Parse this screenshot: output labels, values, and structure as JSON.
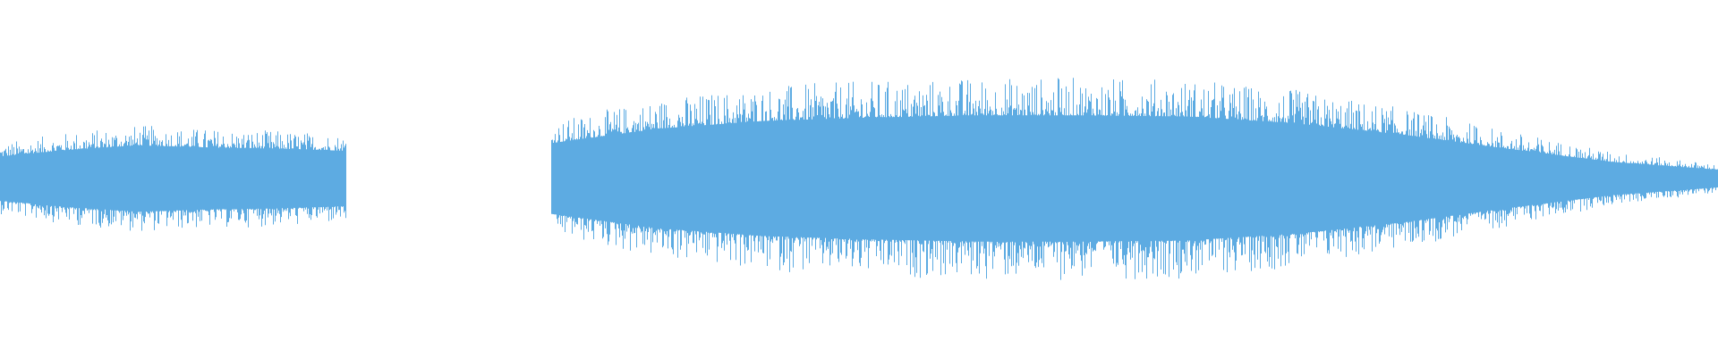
{
  "waveform": {
    "color": "#5DABE2",
    "background": "#FFFFFF",
    "segments": [
      {
        "start_fraction": 0.0,
        "end_fraction": 0.2016,
        "peak_amplitude": 0.32,
        "envelope": [
          0.2,
          0.26,
          0.3,
          0.28,
          0.27,
          0.25
        ]
      },
      {
        "start_fraction": 0.3208,
        "end_fraction": 1.0,
        "peak_amplitude": 0.6,
        "envelope": [
          0.32,
          0.45,
          0.52,
          0.55,
          0.57,
          0.57,
          0.56,
          0.5,
          0.4,
          0.27,
          0.15,
          0.08
        ]
      }
    ]
  }
}
